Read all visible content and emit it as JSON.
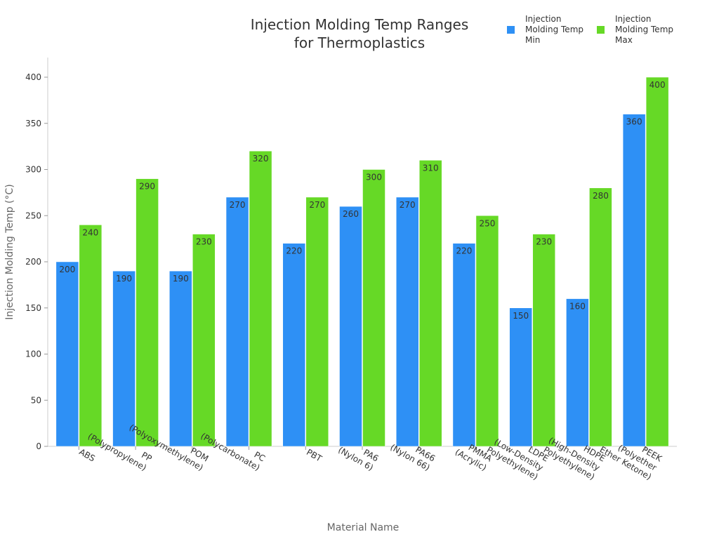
{
  "chart_data": {
    "type": "bar",
    "title": [
      "Injection Molding Temp Ranges",
      "for Thermoplastics"
    ],
    "xlabel": "Material Name",
    "ylabel": "Injection Molding Temp (°C)",
    "ylim": [
      0,
      420
    ],
    "yticks": [
      0,
      50,
      100,
      150,
      200,
      250,
      300,
      350,
      400
    ],
    "grid": false,
    "legend_position": "top-right",
    "categories": [
      [
        "ABS"
      ],
      [
        "PP",
        "(Polypropylene)"
      ],
      [
        "POM",
        "(Polyoxymethylene)"
      ],
      [
        "PC",
        "(Polycarbonate)"
      ],
      [
        "PBT"
      ],
      [
        "PA6",
        "(Nylon 6)"
      ],
      [
        "PA66",
        "(Nylon 66)"
      ],
      [
        "PMMA",
        "(Acrylic)"
      ],
      [
        "LDPE",
        "(Low-Density",
        "Polyethylene)"
      ],
      [
        "HDPE",
        "(High-Density",
        "Polyethylene)"
      ],
      [
        "PEEK",
        "(Polyether",
        "Ether Ketone)"
      ]
    ],
    "series": [
      {
        "name": [
          "Injection",
          "Molding Temp",
          "Min"
        ],
        "color": "#2e90f5",
        "values": [
          200,
          190,
          190,
          270,
          220,
          260,
          270,
          220,
          150,
          160,
          360
        ]
      },
      {
        "name": [
          "Injection",
          "Molding Temp",
          "Max"
        ],
        "color": "#66d926",
        "values": [
          240,
          290,
          230,
          320,
          270,
          300,
          310,
          250,
          230,
          280,
          400
        ]
      }
    ]
  }
}
